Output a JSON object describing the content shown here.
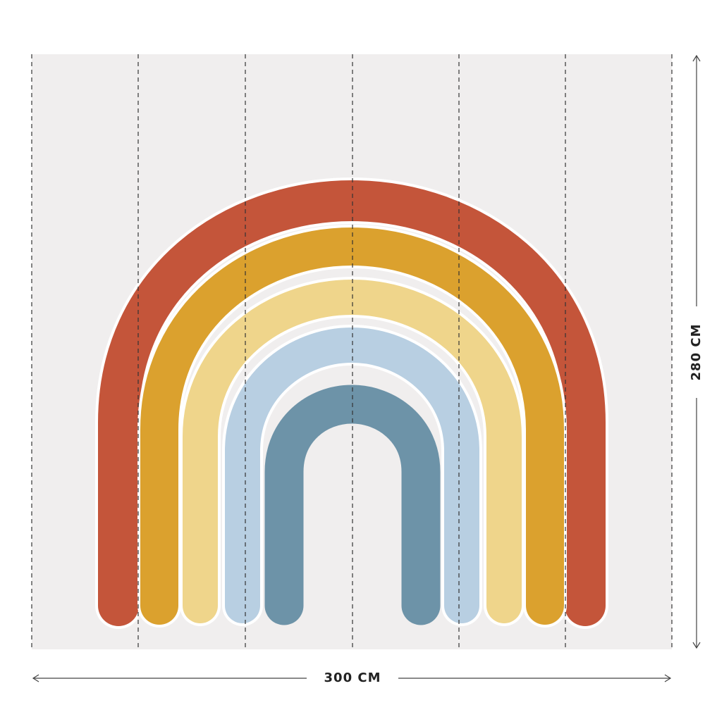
{
  "dimensions": {
    "width": "300 CM",
    "height": "280 CM"
  }
}
